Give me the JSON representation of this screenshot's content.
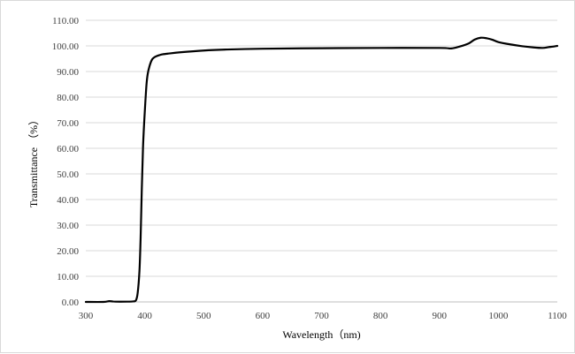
{
  "chart_data": {
    "type": "line",
    "title": "",
    "xlabel": "Wavelength（nm)",
    "ylabel": "Transmittance （%）",
    "xlim": [
      300,
      1100
    ],
    "ylim": [
      0,
      110
    ],
    "x_ticks": [
      "300",
      "400",
      "500",
      "600",
      "700",
      "800",
      "900",
      "1000",
      "1100"
    ],
    "y_ticks": [
      "0.00",
      "10.00",
      "20.00",
      "30.00",
      "40.00",
      "50.00",
      "60.00",
      "70.00",
      "80.00",
      "90.00",
      "100.00",
      "110.00"
    ],
    "grid": "horizontal",
    "legend": "none",
    "series": [
      {
        "color": "#000000",
        "x": [
          300,
          330,
          340,
          350,
          370,
          380,
          385,
          388,
          391,
          393,
          395,
          397,
          399,
          401,
          403,
          405,
          408,
          412,
          416,
          420,
          425,
          430,
          440,
          460,
          500,
          540,
          600,
          700,
          800,
          900,
          920,
          935,
          950,
          960,
          970,
          980,
          990,
          1000,
          1020,
          1040,
          1060,
          1075,
          1085,
          1095,
          1100
        ],
        "y": [
          0.0,
          0.0,
          0.3,
          0.1,
          0.1,
          0.2,
          0.6,
          3.5,
          12,
          25,
          44,
          60,
          70,
          78,
          85,
          89,
          92,
          94.5,
          95.5,
          96.0,
          96.4,
          96.7,
          97.0,
          97.5,
          98.2,
          98.6,
          98.9,
          99.1,
          99.2,
          99.2,
          99.0,
          99.8,
          101,
          102.5,
          103.2,
          103.0,
          102.4,
          101.5,
          100.6,
          99.9,
          99.4,
          99.2,
          99.5,
          99.8,
          100.0
        ]
      }
    ]
  }
}
